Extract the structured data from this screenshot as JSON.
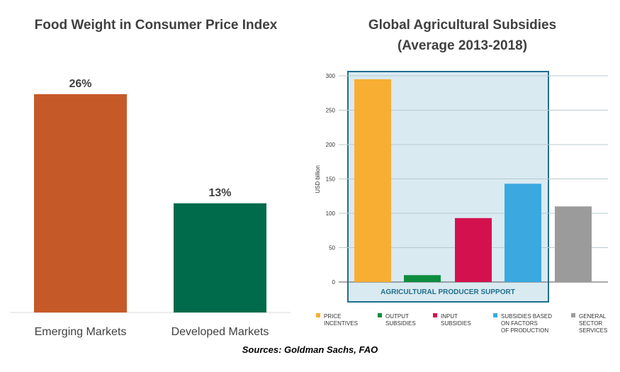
{
  "colors": {
    "emerging": "#c55a28",
    "developed": "#006b4a",
    "price_incentives": "#f7ae32",
    "output_subsidies": "#0e8c3e",
    "input_subsidies": "#d4114f",
    "factors_of_production": "#39a9e0",
    "general_services": "#9b9b9b",
    "producer_support_fill": "#d9eaf1",
    "producer_support_border": "#1f6e8f"
  },
  "sources": "Sources: Goldman Sachs, FAO",
  "chart_data": [
    {
      "type": "bar",
      "title": "Food Weight in Consumer Price Index",
      "categories": [
        "Emerging Markets",
        "Developed Markets"
      ],
      "values": [
        26,
        13
      ],
      "value_labels": [
        "26%",
        "13%"
      ],
      "unit": "%",
      "grid": false,
      "legend": "none"
    },
    {
      "type": "bar",
      "title": "Global Agricultural Subsidies",
      "subtitle": "(Average 2013-2018)",
      "ylabel": "USD billion",
      "ylim": [
        0,
        300
      ],
      "yticks": [
        "0",
        "50",
        "100",
        "150",
        "200",
        "250",
        "300"
      ],
      "grid": true,
      "legend": "bottom",
      "categories": [
        "PRICE INCENTIVES",
        "OUTPUT SUBSIDIES",
        "INPUT SUBSIDIES",
        "SUBSIDIES BASED ON FACTORS OF PRODUCTION",
        "GENERAL SECTOR SERVICES"
      ],
      "legend_lines": [
        [
          "PRICE",
          "INCENTIVES"
        ],
        [
          "OUTPUT",
          "SUBSIDIES"
        ],
        [
          "INPUT",
          "SUBSIDIES"
        ],
        [
          "SUBSIDIES BASED",
          "ON FACTORS",
          "OF PRODUCTION"
        ],
        [
          "GENERAL",
          "SECTOR",
          "SERVICES"
        ]
      ],
      "values": [
        295,
        10,
        93,
        143,
        110
      ],
      "group_label": "AGRICULTURAL PRODUCER SUPPORT",
      "group_members": [
        "PRICE INCENTIVES",
        "OUTPUT SUBSIDIES",
        "INPUT SUBSIDIES",
        "SUBSIDIES BASED ON FACTORS OF PRODUCTION"
      ]
    }
  ]
}
